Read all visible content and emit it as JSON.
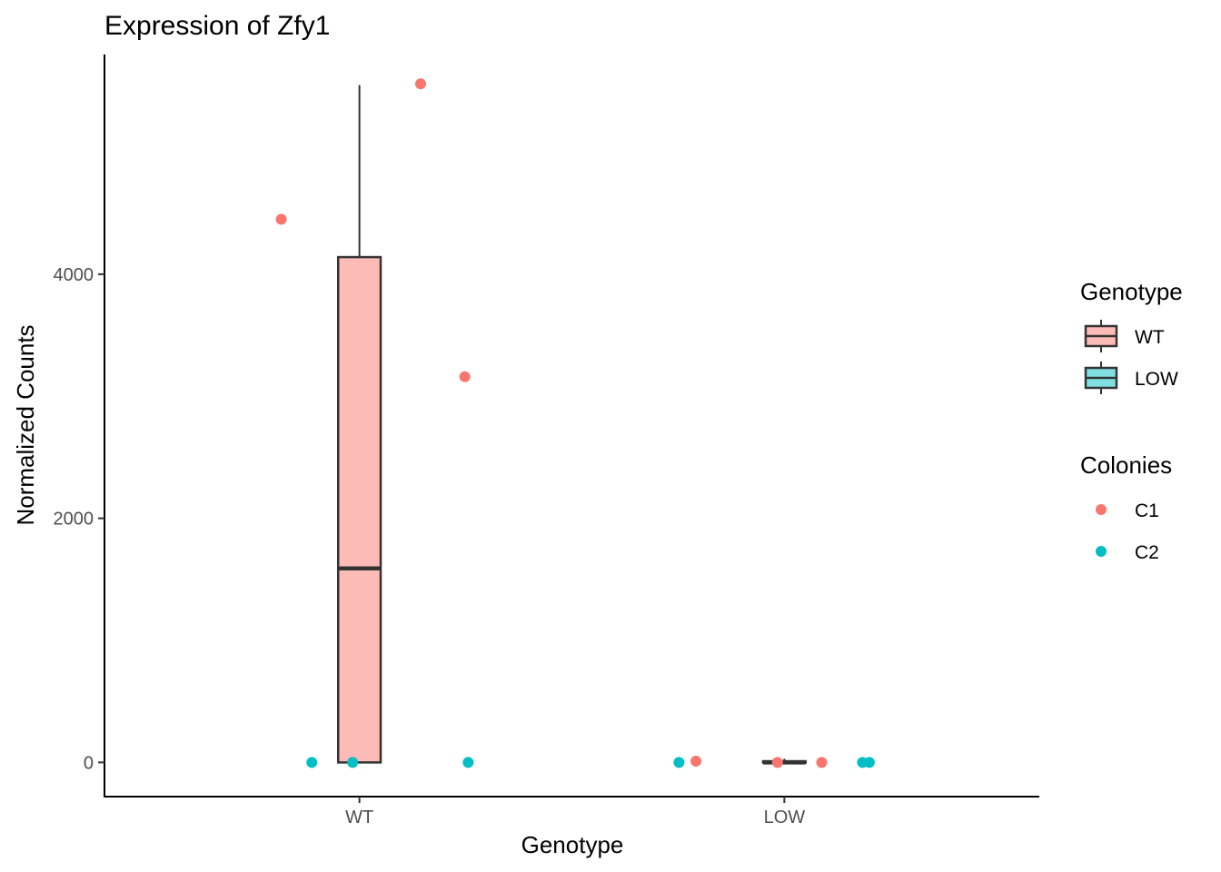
{
  "chart_data": {
    "type": "box",
    "title": "Expression of Zfy1",
    "xlabel": "Genotype",
    "ylabel": "Normalized Counts",
    "categories": [
      "WT",
      "LOW"
    ],
    "ylim": [
      -280,
      5800
    ],
    "yticks": [
      0,
      2000,
      4000
    ],
    "grid": false,
    "legend_position": "right",
    "boxes": [
      {
        "category": "WT",
        "min": 0,
        "q1": 0,
        "median": 1590,
        "q3": 4140,
        "max": 5550,
        "fill": "#F8766D"
      },
      {
        "category": "LOW",
        "min": 0,
        "q1": 0,
        "median": 0,
        "q3": 10,
        "max": 30,
        "fill": "#00BFC4"
      }
    ],
    "points": [
      {
        "category": "WT",
        "colony": "C1",
        "y": 5560,
        "jitter": 0.18
      },
      {
        "category": "WT",
        "colony": "C1",
        "y": 4450,
        "jitter": -0.23
      },
      {
        "category": "WT",
        "colony": "C1",
        "y": 3160,
        "jitter": 0.31
      },
      {
        "category": "WT",
        "colony": "C2",
        "y": 0,
        "jitter": -0.14
      },
      {
        "category": "WT",
        "colony": "C2",
        "y": 0,
        "jitter": -0.02
      },
      {
        "category": "WT",
        "colony": "C2",
        "y": 0,
        "jitter": 0.32
      },
      {
        "category": "LOW",
        "colony": "C2",
        "y": 0,
        "jitter": -0.31
      },
      {
        "category": "LOW",
        "colony": "C1",
        "y": 10,
        "jitter": -0.26
      },
      {
        "category": "LOW",
        "colony": "C1",
        "y": 0,
        "jitter": -0.02
      },
      {
        "category": "LOW",
        "colony": "C1",
        "y": 0,
        "jitter": 0.11
      },
      {
        "category": "LOW",
        "colony": "C2",
        "y": 0,
        "jitter": 0.23
      },
      {
        "category": "LOW",
        "colony": "C2",
        "y": 0,
        "jitter": 0.25
      }
    ],
    "legends": [
      {
        "title": "Genotype",
        "kind": "box",
        "entries": [
          {
            "label": "WT",
            "color": "#F8766D"
          },
          {
            "label": "LOW",
            "color": "#00BFC4"
          }
        ]
      },
      {
        "title": "Colonies",
        "kind": "point",
        "entries": [
          {
            "label": "C1",
            "color": "#F8766D"
          },
          {
            "label": "C2",
            "color": "#00BFC4"
          }
        ]
      }
    ]
  }
}
